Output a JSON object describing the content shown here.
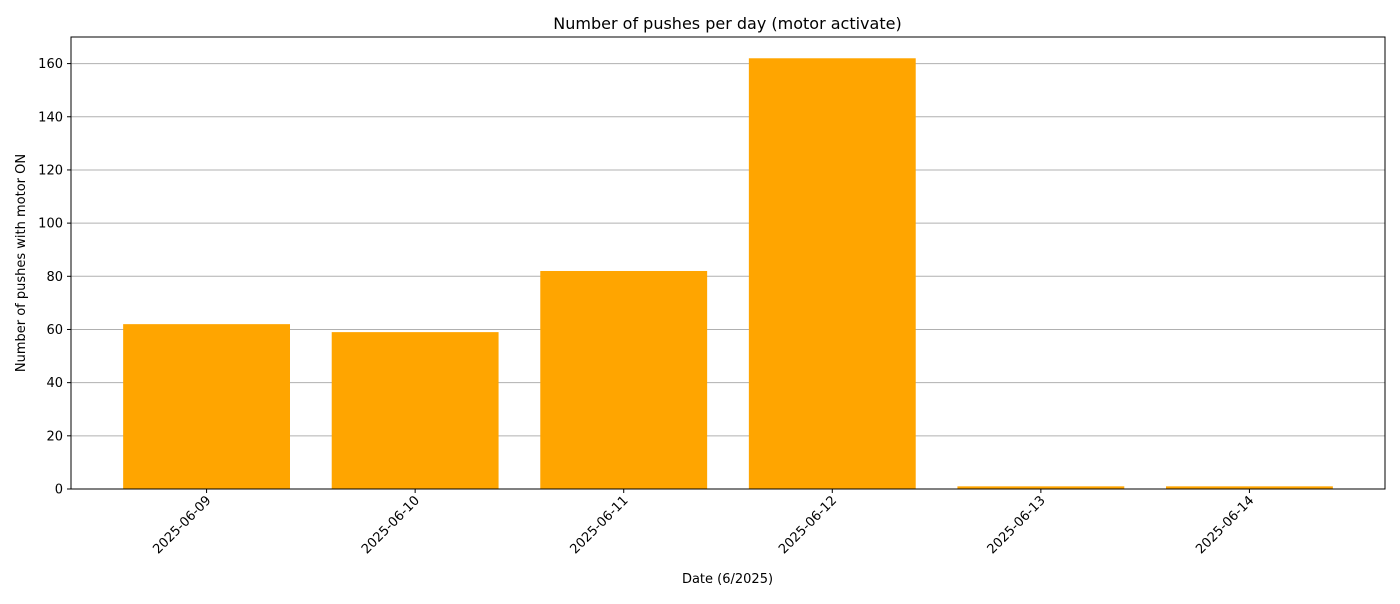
{
  "chart_data": {
    "type": "bar",
    "title": "Number of pushes per day (motor activate)",
    "xlabel": "Date (6/2025)",
    "ylabel": "Number of pushes with motor ON",
    "categories": [
      "2025-06-09",
      "2025-06-10",
      "2025-06-11",
      "2025-06-12",
      "2025-06-13",
      "2025-06-14"
    ],
    "values": [
      62,
      59,
      82,
      162,
      1,
      1
    ],
    "ylim": [
      0,
      170
    ],
    "yticks": [
      0,
      20,
      40,
      60,
      80,
      100,
      120,
      140,
      160
    ],
    "grid": "y",
    "colors": {
      "bar": "#FFA500",
      "grid": "#b0b0b0",
      "axis": "#000000"
    }
  }
}
